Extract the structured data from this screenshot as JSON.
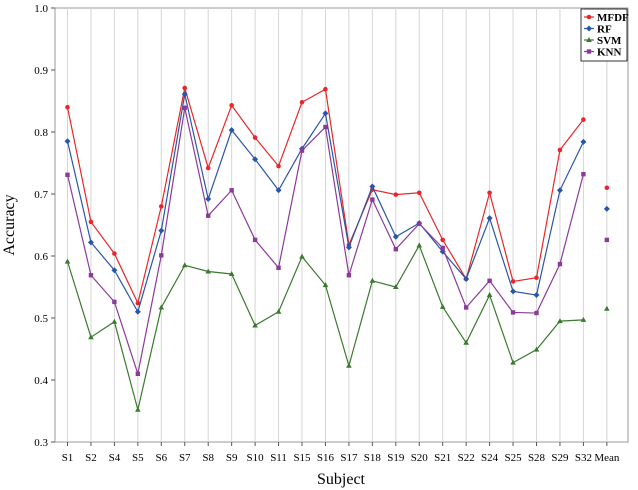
{
  "chart_data": {
    "type": "line",
    "xlabel": "Subject",
    "ylabel": "Accuracy",
    "ylim": [
      0.3,
      1.0
    ],
    "yticks": [
      "0.3",
      "0.4",
      "0.5",
      "0.6",
      "0.7",
      "0.8",
      "0.9",
      "1.0"
    ],
    "grid": "vertical",
    "legend_position": "top-right",
    "categories": [
      "S1",
      "S2",
      "S4",
      "S5",
      "S6",
      "S7",
      "S8",
      "S9",
      "S10",
      "S11",
      "S15",
      "S16",
      "S17",
      "S18",
      "S19",
      "S20",
      "S21",
      "S22",
      "S24",
      "S25",
      "S28",
      "S29",
      "S32",
      "Mean"
    ],
    "series": [
      {
        "name": "MFDF",
        "color": "#e8272a",
        "marker": "circle",
        "values": [
          0.84,
          0.655,
          0.604,
          0.524,
          0.68,
          0.871,
          0.742,
          0.843,
          0.791,
          0.745,
          0.848,
          0.869,
          0.618,
          0.707,
          0.699,
          0.702,
          0.626,
          0.563,
          0.702,
          0.559,
          0.565,
          0.771,
          0.82,
          0.71
        ]
      },
      {
        "name": "RF",
        "color": "#2a56a8",
        "marker": "diamond",
        "values": [
          0.785,
          0.622,
          0.577,
          0.51,
          0.641,
          0.861,
          0.692,
          0.803,
          0.756,
          0.706,
          0.773,
          0.83,
          0.614,
          0.712,
          0.631,
          0.653,
          0.607,
          0.563,
          0.661,
          0.543,
          0.537,
          0.706,
          0.784,
          0.676
        ]
      },
      {
        "name": "SVM",
        "color": "#3a7a2e",
        "marker": "triangle",
        "values": [
          0.591,
          0.469,
          0.494,
          0.352,
          0.517,
          0.585,
          0.575,
          0.571,
          0.488,
          0.51,
          0.599,
          0.553,
          0.423,
          0.56,
          0.55,
          0.617,
          0.518,
          0.46,
          0.537,
          0.428,
          0.449,
          0.495,
          0.497,
          0.515
        ]
      },
      {
        "name": "KNN",
        "color": "#8b3a9a",
        "marker": "square",
        "values": [
          0.731,
          0.569,
          0.526,
          0.41,
          0.601,
          0.839,
          0.665,
          0.706,
          0.626,
          0.581,
          0.77,
          0.808,
          0.569,
          0.691,
          0.611,
          0.652,
          0.613,
          0.517,
          0.56,
          0.509,
          0.508,
          0.587,
          0.732,
          0.626
        ]
      }
    ]
  }
}
